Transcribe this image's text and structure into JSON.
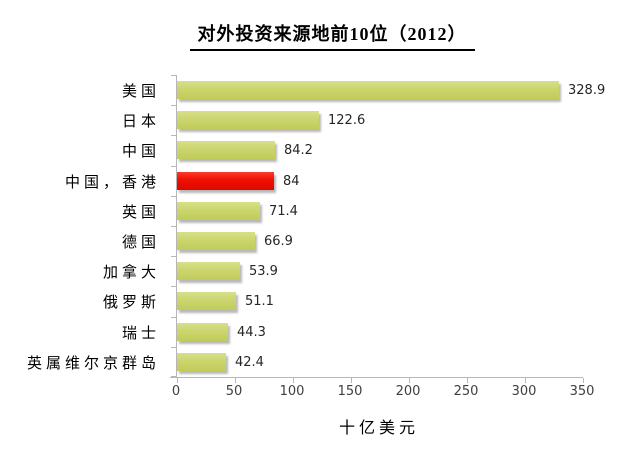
{
  "chart_data": {
    "type": "bar",
    "orientation": "horizontal",
    "title": "对外投资来源地前10位（2012）",
    "xlabel": "十亿美元",
    "categories": [
      "美国",
      "日本",
      "中国",
      "中国，香港",
      "英国",
      "德国",
      "加拿大",
      "俄罗斯",
      "瑞士",
      "英属维尔京群岛"
    ],
    "values": [
      328.9,
      122.6,
      84.2,
      84,
      71.4,
      66.9,
      53.9,
      51.1,
      44.3,
      42.4
    ],
    "value_labels": [
      "328.9",
      "122.6",
      "84.2",
      "84",
      "71.4",
      "66.9",
      "53.9",
      "51.1",
      "44.3",
      "42.4"
    ],
    "xlim": [
      0,
      350
    ],
    "x_ticks": [
      "0",
      "50",
      "100",
      "150",
      "200",
      "250",
      "300",
      "350"
    ],
    "highlight_index": 3,
    "bar_color": "#cbd56e",
    "highlight_color": "#ee0f00",
    "axis_color": "#b7b7b7",
    "grid": false,
    "legend": "none"
  }
}
